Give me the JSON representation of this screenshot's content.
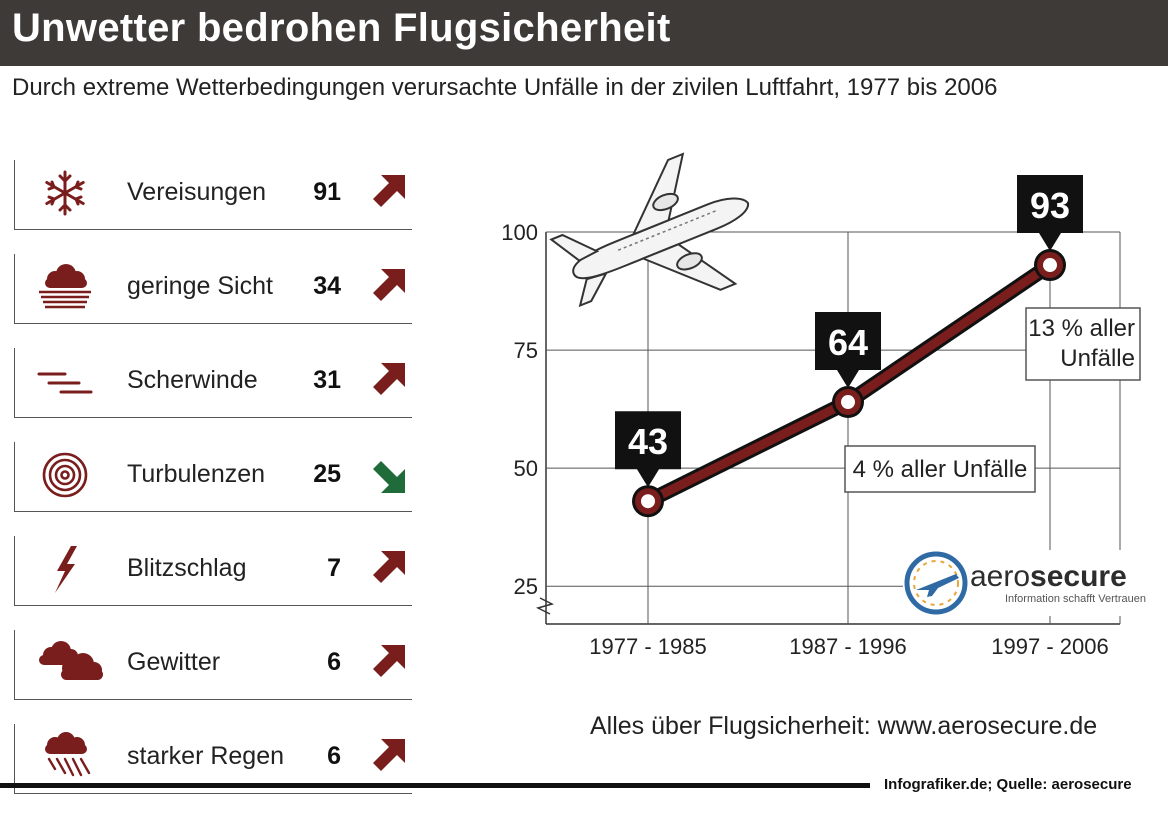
{
  "header": {
    "title": "Unwetter bedrohen Flugsicherheit",
    "subtitle": "Durch extreme Wetterbedingungen verursachte Unfälle in der zivilen Luftfahrt,  1977 bis 2006"
  },
  "colors": {
    "accent": "#7a1d1d",
    "down": "#1f6b3a",
    "header_bg": "#3d3a38"
  },
  "causes": [
    {
      "icon": "snowflake-icon",
      "label": "Vereisungen",
      "value": "91",
      "trend": "up"
    },
    {
      "icon": "fog-icon",
      "label": "geringe Sicht",
      "value": "34",
      "trend": "up"
    },
    {
      "icon": "wind-icon",
      "label": "Scherwinde",
      "value": "31",
      "trend": "up"
    },
    {
      "icon": "spiral-icon",
      "label": "Turbulenzen",
      "value": "25",
      "trend": "down"
    },
    {
      "icon": "lightning-icon",
      "label": "Blitzschlag",
      "value": "7",
      "trend": "up"
    },
    {
      "icon": "thundercloud-icon",
      "label": "Gewitter",
      "value": "6",
      "trend": "up"
    },
    {
      "icon": "rain-icon",
      "label": "starker Regen",
      "value": "6",
      "trend": "up"
    }
  ],
  "chart_data": {
    "type": "line",
    "categories": [
      "1977 - 1985",
      "1987 -  1996",
      "1997 - 2006"
    ],
    "values": [
      43,
      64,
      93
    ],
    "data_labels": [
      "43",
      "64",
      "93"
    ],
    "yticks": [
      25,
      50,
      75,
      100
    ],
    "ylim": [
      17,
      100
    ],
    "grid": true,
    "annotations": [
      {
        "text": "4 % aller Unfälle"
      },
      {
        "lines": [
          "13 % aller",
          "Unfälle"
        ]
      }
    ]
  },
  "logo": {
    "name": "aero",
    "name_bold": "secure",
    "tagline": "Information schafft Vertrauen"
  },
  "footer": {
    "url_text": "Alles über Flugsicherheit: www.aerosecure.de",
    "credit": "Infografiker.de; Quelle: aerosecure"
  }
}
